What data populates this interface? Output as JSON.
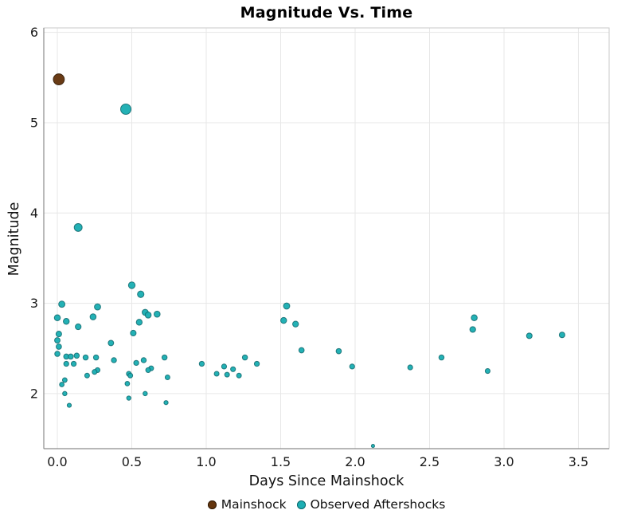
{
  "chart_data": {
    "type": "scatter",
    "title": "Magnitude Vs. Time",
    "xlabel": "Days Since Mainshock",
    "ylabel": "Magnitude",
    "x_range": [
      -0.091,
      3.706
    ],
    "y_range": [
      1.39,
      6.05
    ],
    "x_ticks": {
      "values": [
        0.0,
        0.5,
        1.0,
        1.5,
        2.0,
        2.5,
        3.0,
        3.5
      ],
      "labels": [
        "0.0",
        "0.5",
        "1.0",
        "1.5",
        "2.0",
        "2.5",
        "3.0",
        "3.5"
      ]
    },
    "y_ticks": {
      "values": [
        2,
        3,
        4,
        5,
        6
      ],
      "labels": [
        "2",
        "3",
        "4",
        "5",
        "6"
      ]
    },
    "grid": true,
    "legend_position": "bottom-center",
    "colors": {
      "mainshock_fill": "#64350D",
      "mainshock_edge": "#2F1A06",
      "aftershock_fill": "#1CAEB3",
      "aftershock_edge": "#11696D",
      "gridline": "#E7E7E7",
      "plot_border": "#C9C9C9",
      "axis_line": "#8C8C8C",
      "tick_text": "#1A1A1A"
    },
    "series": [
      {
        "name": "Mainshock",
        "color": "#64350D",
        "edge_color": "#2F1A06",
        "points": [
          [
            0.01,
            5.48
          ]
        ]
      },
      {
        "name": "Observed Aftershocks",
        "color": "#1CAEB3",
        "edge_color": "#11696D",
        "points": [
          [
            0.46,
            5.15
          ],
          [
            0.14,
            3.84
          ],
          [
            0.5,
            3.2
          ],
          [
            0.56,
            3.1
          ],
          [
            0.03,
            2.99
          ],
          [
            1.54,
            2.97
          ],
          [
            0.27,
            2.96
          ],
          [
            0.59,
            2.9
          ],
          [
            0.67,
            2.88
          ],
          [
            0.61,
            2.87
          ],
          [
            0.24,
            2.85
          ],
          [
            0.0,
            2.84
          ],
          [
            2.8,
            2.84
          ],
          [
            1.52,
            2.81
          ],
          [
            0.06,
            2.8
          ],
          [
            0.55,
            2.79
          ],
          [
            1.6,
            2.77
          ],
          [
            0.14,
            2.74
          ],
          [
            2.79,
            2.71
          ],
          [
            0.51,
            2.67
          ],
          [
            0.01,
            2.66
          ],
          [
            3.39,
            2.65
          ],
          [
            3.17,
            2.64
          ],
          [
            0.0,
            2.59
          ],
          [
            0.36,
            2.56
          ],
          [
            0.01,
            2.52
          ],
          [
            1.64,
            2.48
          ],
          [
            1.89,
            2.47
          ],
          [
            0.0,
            2.44
          ],
          [
            0.13,
            2.42
          ],
          [
            0.06,
            2.41
          ],
          [
            0.09,
            2.41
          ],
          [
            0.19,
            2.4
          ],
          [
            0.26,
            2.4
          ],
          [
            0.72,
            2.4
          ],
          [
            1.26,
            2.4
          ],
          [
            2.58,
            2.4
          ],
          [
            0.38,
            2.37
          ],
          [
            0.58,
            2.37
          ],
          [
            0.53,
            2.34
          ],
          [
            0.97,
            2.33
          ],
          [
            1.34,
            2.33
          ],
          [
            0.06,
            2.33
          ],
          [
            0.11,
            2.33
          ],
          [
            1.12,
            2.3
          ],
          [
            1.98,
            2.3
          ],
          [
            2.37,
            2.29
          ],
          [
            0.63,
            2.28
          ],
          [
            1.18,
            2.27
          ],
          [
            0.27,
            2.26
          ],
          [
            0.61,
            2.26
          ],
          [
            2.89,
            2.25
          ],
          [
            0.25,
            2.24
          ],
          [
            1.07,
            2.22
          ],
          [
            0.48,
            2.22
          ],
          [
            1.14,
            2.21
          ],
          [
            0.49,
            2.2
          ],
          [
            0.2,
            2.2
          ],
          [
            1.22,
            2.2
          ],
          [
            0.74,
            2.18
          ],
          [
            0.05,
            2.15
          ],
          [
            0.47,
            2.11
          ],
          [
            0.03,
            2.1
          ],
          [
            0.59,
            2.0
          ],
          [
            0.05,
            2.0
          ],
          [
            0.48,
            1.95
          ],
          [
            0.73,
            1.9
          ],
          [
            0.08,
            1.87
          ],
          [
            2.12,
            1.42
          ]
        ]
      }
    ],
    "legend": {
      "entries": [
        {
          "label": "Mainshock",
          "color": "#64350D",
          "edge_color": "#2F1A06"
        },
        {
          "label": "Observed Aftershocks",
          "color": "#1CAEB3",
          "edge_color": "#11696D"
        }
      ]
    }
  }
}
